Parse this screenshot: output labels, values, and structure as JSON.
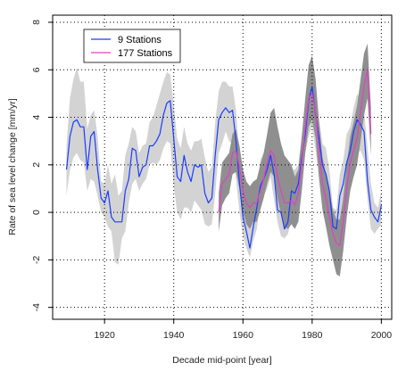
{
  "chart_data": {
    "type": "line",
    "title": "",
    "xlabel": "Decade mid-point [year]",
    "ylabel": "Rate of sea level change [mm/yr]",
    "xlim": [
      1905,
      2003
    ],
    "ylim": [
      -4.5,
      8.3
    ],
    "xticks": [
      1920,
      1940,
      1960,
      1980,
      2000
    ],
    "yticks": [
      -4,
      -2,
      0,
      2,
      4,
      6,
      8
    ],
    "grid": true,
    "legend_position": "top-left",
    "colors": {
      "nine_stations": "#1a3cff",
      "stations_177": "#e040c8",
      "band_nine": "#d3d3d3",
      "band_177": "#8f8f8f"
    },
    "series": [
      {
        "name": "9 Stations",
        "x": [
          1909,
          1910,
          1911,
          1912,
          1913,
          1914,
          1915,
          1916,
          1917,
          1918,
          1919,
          1920,
          1921,
          1922,
          1923,
          1924,
          1925,
          1926,
          1927,
          1928,
          1929,
          1930,
          1931,
          1932,
          1933,
          1934,
          1935,
          1936,
          1937,
          1938,
          1939,
          1940,
          1941,
          1942,
          1943,
          1944,
          1945,
          1946,
          1947,
          1948,
          1949,
          1950,
          1951,
          1952,
          1953,
          1954,
          1955,
          1956,
          1957,
          1958,
          1959,
          1960,
          1961,
          1962,
          1963,
          1964,
          1965,
          1966,
          1967,
          1968,
          1969,
          1970,
          1971,
          1972,
          1973,
          1974,
          1975,
          1976,
          1977,
          1978,
          1979,
          1980,
          1981,
          1982,
          1983,
          1984,
          1985,
          1986,
          1987,
          1988,
          1989,
          1990,
          1991,
          1992,
          1993,
          1994,
          1995,
          1996,
          1997,
          1998,
          1999,
          2000
        ],
        "values": [
          1.8,
          3.2,
          3.8,
          3.9,
          3.6,
          3.6,
          1.8,
          3.2,
          3.4,
          1.8,
          0.6,
          0.4,
          0.9,
          -0.2,
          -0.4,
          -0.4,
          -0.4,
          0.9,
          1.4,
          2.7,
          2.6,
          1.5,
          1.9,
          2.0,
          2.8,
          2.8,
          3.0,
          3.3,
          4.1,
          4.6,
          4.7,
          3.1,
          1.5,
          1.3,
          2.4,
          1.7,
          1.3,
          2.0,
          1.9,
          2.0,
          0.8,
          0.4,
          0.6,
          2.4,
          3.9,
          4.2,
          4.4,
          4.2,
          4.3,
          3.0,
          1.2,
          -0.2,
          -0.8,
          -1.5,
          -0.6,
          0.2,
          1.1,
          1.4,
          1.8,
          2.4,
          1.6,
          0.1,
          0.0,
          -0.7,
          -0.4,
          0.9,
          0.8,
          1.2,
          2.3,
          3.3,
          4.7,
          5.3,
          4.1,
          3.1,
          2.0,
          1.6,
          0.9,
          -0.6,
          -0.7,
          0.7,
          1.2,
          2.1,
          2.6,
          3.4,
          3.9,
          3.7,
          3.4,
          1.3,
          0.1,
          -0.2,
          -0.4,
          0.3
        ],
        "band_lower": [
          0.7,
          1.8,
          2.3,
          2.5,
          2.2,
          2.1,
          0.9,
          1.4,
          1.3,
          0.7,
          0.0,
          -0.2,
          -0.6,
          -0.8,
          -2.1,
          -2.2,
          -1.1,
          -0.8,
          0.4,
          1.2,
          1.4,
          0.9,
          1.2,
          1.4,
          2.0,
          2.1,
          2.0,
          2.2,
          2.7,
          3.0,
          2.9,
          1.1,
          0.0,
          -0.3,
          0.2,
          0.2,
          0.0,
          0.5,
          0.3,
          0.1,
          -0.5,
          -0.6,
          -0.5,
          0.8,
          2.5,
          2.9,
          3.4,
          3.0,
          2.9,
          1.4,
          0.0,
          -1.0,
          -1.5,
          -1.9,
          -1.2,
          -0.7,
          0.4,
          0.7,
          1.0,
          1.5,
          0.5,
          -0.4,
          -1.0,
          -1.1,
          -0.9,
          -0.3,
          -0.2,
          0.3,
          1.1,
          2.5,
          3.2,
          3.6,
          2.6,
          1.6,
          0.8,
          0.3,
          -0.5,
          -1.0,
          -0.8,
          -0.3,
          0.1,
          0.6,
          1.2,
          1.9,
          2.5,
          2.6,
          2.2,
          0.5,
          -0.7,
          -0.9,
          -0.7,
          -0.5
        ],
        "band_upper": [
          2.8,
          4.8,
          5.6,
          6.1,
          5.5,
          5.5,
          3.5,
          4.1,
          4.3,
          3.2,
          1.3,
          1.2,
          2.0,
          1.2,
          1.6,
          0.7,
          0.9,
          2.4,
          2.9,
          3.6,
          3.4,
          2.5,
          2.8,
          2.9,
          3.8,
          4.0,
          4.5,
          5.0,
          5.5,
          5.9,
          5.8,
          4.5,
          3.1,
          2.7,
          3.6,
          2.9,
          2.6,
          3.0,
          3.0,
          3.1,
          2.3,
          1.7,
          1.9,
          3.8,
          5.1,
          5.5,
          5.5,
          5.3,
          5.3,
          4.3,
          2.2,
          0.6,
          0.2,
          -0.5,
          0.4,
          1.1,
          2.2,
          2.5,
          2.8,
          3.5,
          2.6,
          1.2,
          0.8,
          0.4,
          0.6,
          1.8,
          1.8,
          2.0,
          3.2,
          4.3,
          5.7,
          6.1,
          4.9,
          3.9,
          2.9,
          2.7,
          1.8,
          0.2,
          0.1,
          1.6,
          2.2,
          3.3,
          3.6,
          4.4,
          5.0,
          4.7,
          4.3,
          2.7,
          1.2,
          0.4,
          0.2,
          0.9
        ]
      },
      {
        "name": "177 Stations",
        "x": [
          1953,
          1954,
          1955,
          1956,
          1957,
          1958,
          1959,
          1960,
          1961,
          1962,
          1963,
          1964,
          1965,
          1966,
          1967,
          1968,
          1969,
          1970,
          1971,
          1972,
          1973,
          1974,
          1975,
          1976,
          1977,
          1978,
          1979,
          1980,
          1981,
          1982,
          1983,
          1984,
          1985,
          1986,
          1987,
          1988,
          1989,
          1990,
          1991,
          1992,
          1993,
          1994,
          1995,
          1996,
          1997
        ],
        "values": [
          0.0,
          1.2,
          1.4,
          1.6,
          2.5,
          2.6,
          1.9,
          0.9,
          0.4,
          0.2,
          0.4,
          0.4,
          0.9,
          1.4,
          2.1,
          2.6,
          2.4,
          1.5,
          0.9,
          0.4,
          0.4,
          0.5,
          0.3,
          0.8,
          2.1,
          3.6,
          4.8,
          5.0,
          4.2,
          2.6,
          1.2,
          0.6,
          -0.2,
          -0.9,
          -1.3,
          -1.4,
          -0.4,
          1.0,
          2.1,
          2.6,
          3.1,
          4.2,
          5.3,
          6.0,
          3.3
        ],
        "band_lower": [
          -0.8,
          0.3,
          0.6,
          0.8,
          1.6,
          1.7,
          1.0,
          0.0,
          -0.5,
          -0.7,
          -0.4,
          -0.4,
          0.1,
          0.6,
          1.2,
          1.7,
          1.5,
          0.6,
          -0.1,
          -0.6,
          -0.7,
          -0.5,
          -0.7,
          -0.4,
          0.9,
          2.5,
          3.6,
          3.9,
          3.1,
          1.4,
          0.1,
          -0.6,
          -1.4,
          -2.0,
          -2.6,
          -2.7,
          -1.6,
          -0.2,
          0.9,
          1.5,
          2.0,
          3.0,
          4.1,
          4.8,
          2.4
        ],
        "band_upper": [
          0.8,
          2.1,
          2.3,
          2.5,
          3.3,
          3.5,
          2.8,
          1.8,
          1.3,
          1.1,
          1.3,
          1.4,
          2.0,
          2.5,
          3.3,
          4.2,
          4.4,
          3.6,
          2.9,
          2.4,
          2.2,
          2.0,
          1.5,
          1.8,
          3.2,
          4.8,
          6.2,
          6.6,
          5.6,
          3.8,
          2.3,
          1.6,
          0.9,
          0.1,
          -0.3,
          -0.3,
          0.6,
          2.0,
          3.2,
          3.8,
          4.5,
          5.6,
          6.7,
          7.1,
          4.4
        ]
      }
    ]
  }
}
